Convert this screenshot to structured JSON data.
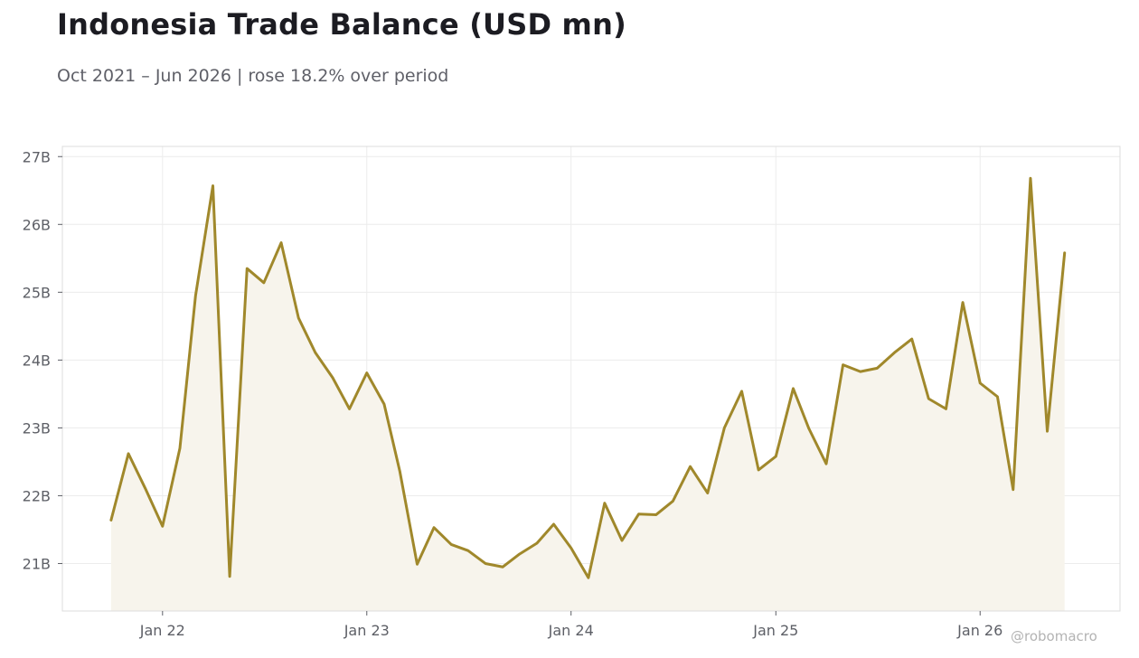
{
  "title": "Indonesia Trade Balance (USD mn)",
  "subtitle": "Oct 2021 – Jun 2026 | rose 18.2% over period",
  "watermark": "@robomacro",
  "colors": {
    "line": "#a0882b",
    "fill": "#f7f4ec",
    "grid": "#ececec",
    "frame": "#dcdcdc",
    "text": "#5d5f66"
  },
  "chart_data": {
    "type": "area",
    "title": "Indonesia Trade Balance (USD mn)",
    "subtitle": "Oct 2021 – Jun 2026 | rose 18.2% over period",
    "xlabel": "",
    "ylabel": "",
    "grid": true,
    "legend": "none",
    "x_ticks": [
      {
        "date": "2022-01",
        "label": "Jan 22"
      },
      {
        "date": "2023-01",
        "label": "Jan 23"
      },
      {
        "date": "2024-01",
        "label": "Jan 24"
      },
      {
        "date": "2025-01",
        "label": "Jan 25"
      },
      {
        "date": "2026-01",
        "label": "Jan 26"
      }
    ],
    "y_ticks": [
      {
        "value": 21000,
        "label": "21B"
      },
      {
        "value": 22000,
        "label": "22B"
      },
      {
        "value": 23000,
        "label": "23B"
      },
      {
        "value": 24000,
        "label": "24B"
      },
      {
        "value": 25000,
        "label": "25B"
      },
      {
        "value": 26000,
        "label": "26B"
      },
      {
        "value": 27000,
        "label": "27B"
      }
    ],
    "ylim": [
      20300,
      27150
    ],
    "xlim": [
      "2021-07-06",
      "2026-09-08"
    ],
    "series": [
      {
        "dates": [
          "2021-10",
          "2021-11",
          "2021-12",
          "2022-01",
          "2022-02",
          "2022-03",
          "2022-04",
          "2022-05",
          "2022-06",
          "2022-07",
          "2022-08",
          "2022-09",
          "2022-10",
          "2022-11",
          "2022-12",
          "2023-01",
          "2023-02",
          "2023-03",
          "2023-04",
          "2023-05",
          "2023-06",
          "2023-07",
          "2023-08",
          "2023-09",
          "2023-10",
          "2023-11",
          "2023-12",
          "2024-01",
          "2024-02",
          "2024-03",
          "2024-04",
          "2024-05",
          "2024-06",
          "2024-07",
          "2024-08",
          "2024-09",
          "2024-10",
          "2024-11",
          "2024-12",
          "2025-01",
          "2025-02",
          "2025-03",
          "2025-04",
          "2025-05",
          "2025-06",
          "2025-07",
          "2025-08",
          "2025-09",
          "2025-10",
          "2025-11",
          "2025-12",
          "2026-01",
          "2026-02",
          "2026-03",
          "2026-04",
          "2026-05",
          "2026-06"
        ],
        "values": [
          21640,
          22620,
          22110,
          21550,
          22700,
          24950,
          26570,
          20810,
          25350,
          25140,
          25730,
          24620,
          24110,
          23740,
          23280,
          23810,
          23350,
          22360,
          20990,
          21530,
          21280,
          21190,
          21000,
          20950,
          21140,
          21300,
          21580,
          21230,
          20790,
          21890,
          21340,
          21730,
          21720,
          21920,
          22430,
          22040,
          23000,
          23540,
          22380,
          22580,
          23580,
          22990,
          22470,
          23930,
          23830,
          23880,
          24110,
          24310,
          23430,
          23280,
          24850,
          23660,
          23460,
          22090,
          26680,
          22950,
          25580
        ]
      }
    ]
  }
}
